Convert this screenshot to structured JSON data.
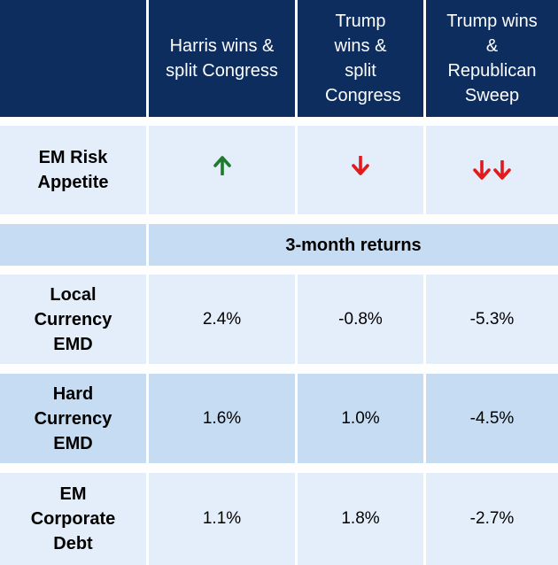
{
  "header": {
    "corner": "",
    "col1": "Harris wins & split Congress",
    "col2": "Trump wins & split Congress",
    "col3": "Trump wins & Republican Sweep"
  },
  "risk_row": {
    "label": "EM Risk Appetite",
    "col1_icon": "arrow-up-green",
    "col2_icon": "arrow-down-red",
    "col3_icon": "double-arrow-down-red",
    "colors": {
      "up": "#1f7a2e",
      "down": "#e11b1b"
    }
  },
  "subheader": {
    "corner": "",
    "label": "3-month returns"
  },
  "rows": [
    {
      "label": "Local Currency EMD",
      "values": [
        "2.4%",
        "-0.8%",
        "-5.3%"
      ]
    },
    {
      "label": "Hard Currency EMD",
      "values": [
        "1.6%",
        "1.0%",
        "-4.5%"
      ]
    },
    {
      "label": "EM Corporate Debt",
      "values": [
        "1.1%",
        "1.8%",
        "-2.7%"
      ]
    }
  ],
  "colors": {
    "header_bg": "#0c2d5e",
    "light_bg": "#e4eefb",
    "mid_bg": "#c5dcf3"
  }
}
